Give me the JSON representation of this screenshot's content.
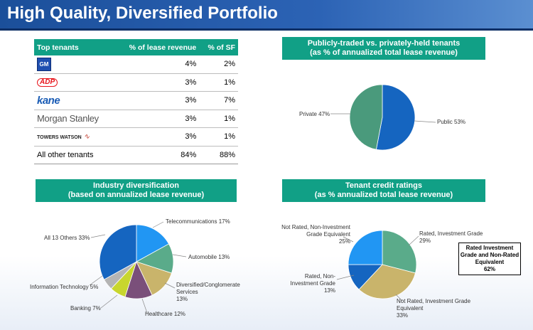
{
  "title": "High Quality, Diversified Portfolio",
  "table": {
    "headers": [
      "Top tenants",
      "% of lease revenue",
      "% of SF"
    ],
    "rows": [
      {
        "tenant": "GM",
        "logo": "gm-logo",
        "lease": "4%",
        "sf": "2%"
      },
      {
        "tenant": "ADP",
        "logo": "adp-logo",
        "lease": "3%",
        "sf": "1%"
      },
      {
        "tenant": "kane",
        "logo": "kane-logo",
        "lease": "3%",
        "sf": "7%"
      },
      {
        "tenant": "Morgan Stanley",
        "logo": "morgan-stanley-logo",
        "lease": "3%",
        "sf": "1%"
      },
      {
        "tenant": "TOWERS WATSON",
        "logo": "towers-watson-logo",
        "lease": "3%",
        "sf": "1%"
      },
      {
        "tenant": "All other tenants",
        "logo": "",
        "lease": "84%",
        "sf": "88%"
      }
    ]
  },
  "chart_data": [
    {
      "type": "pie",
      "title": "Publicly-traded vs. privately-held tenants\n(as % of annualized total lease revenue)",
      "title_line1": "Publicly-traded vs. privately-held tenants",
      "title_line2": "(as % of annualized total lease revenue)",
      "slices": [
        {
          "label": "Public",
          "value": 53,
          "color": "#1565c0",
          "text": "Public 53%"
        },
        {
          "label": "Private",
          "value": 47,
          "color": "#4a9a7c",
          "text": "Private 47%"
        }
      ]
    },
    {
      "type": "pie",
      "title_line1": "Industry diversification",
      "title_line2": "(based on annualized lease revenue)",
      "slices": [
        {
          "label": "Telecommunications",
          "value": 17,
          "color": "#2196f3",
          "text": "Telecommunications 17%"
        },
        {
          "label": "Automobile",
          "value": 13,
          "color": "#5aab8a",
          "text": "Automobile 13%"
        },
        {
          "label": "Diversified/Conglomerate Services",
          "value": 13,
          "color": "#c9b46b",
          "text": "Diversified/Conglomerate\nServices\n13%"
        },
        {
          "label": "Healthcare",
          "value": 12,
          "color": "#7a4f7a",
          "text": "Healthcare 12%"
        },
        {
          "label": "Banking",
          "value": 7,
          "color": "#c8d62e",
          "text": "Banking 7%"
        },
        {
          "label": "Information Technology",
          "value": 5,
          "color": "#b4b4b4",
          "text": "Information Technology 5%"
        },
        {
          "label": "All 13 Others",
          "value": 33,
          "color": "#1565c0",
          "text": "All 13 Others 33%"
        }
      ]
    },
    {
      "type": "pie",
      "title_line1": "Tenant credit ratings",
      "title_line2": "(as % annualized total lease revenue)",
      "slices": [
        {
          "label": "Rated, Investment Grade",
          "value": 29,
          "color": "#5aab8a",
          "text": "Rated, Investment Grade\n29%"
        },
        {
          "label": "Not Rated, Investment Grade Equivalent",
          "value": 33,
          "color": "#c9b46b",
          "text": "Not Rated, Investment Grade\nEquivalent\n33%"
        },
        {
          "label": "Rated, Non-Investment Grade",
          "value": 13,
          "color": "#1565c0",
          "text": "Rated, Non-\nInvestment Grade\n13%"
        },
        {
          "label": "Not Rated, Non-Investment Grade Equivalent",
          "value": 25,
          "color": "#2196f3",
          "text": "Not Rated, Non-Investment\nGrade Equivalent\n25%"
        }
      ]
    }
  ],
  "callout": {
    "line1": "Rated Investment",
    "line2": "Grade and Non-Rated",
    "line3": "Equivalent",
    "line4": "62%"
  }
}
